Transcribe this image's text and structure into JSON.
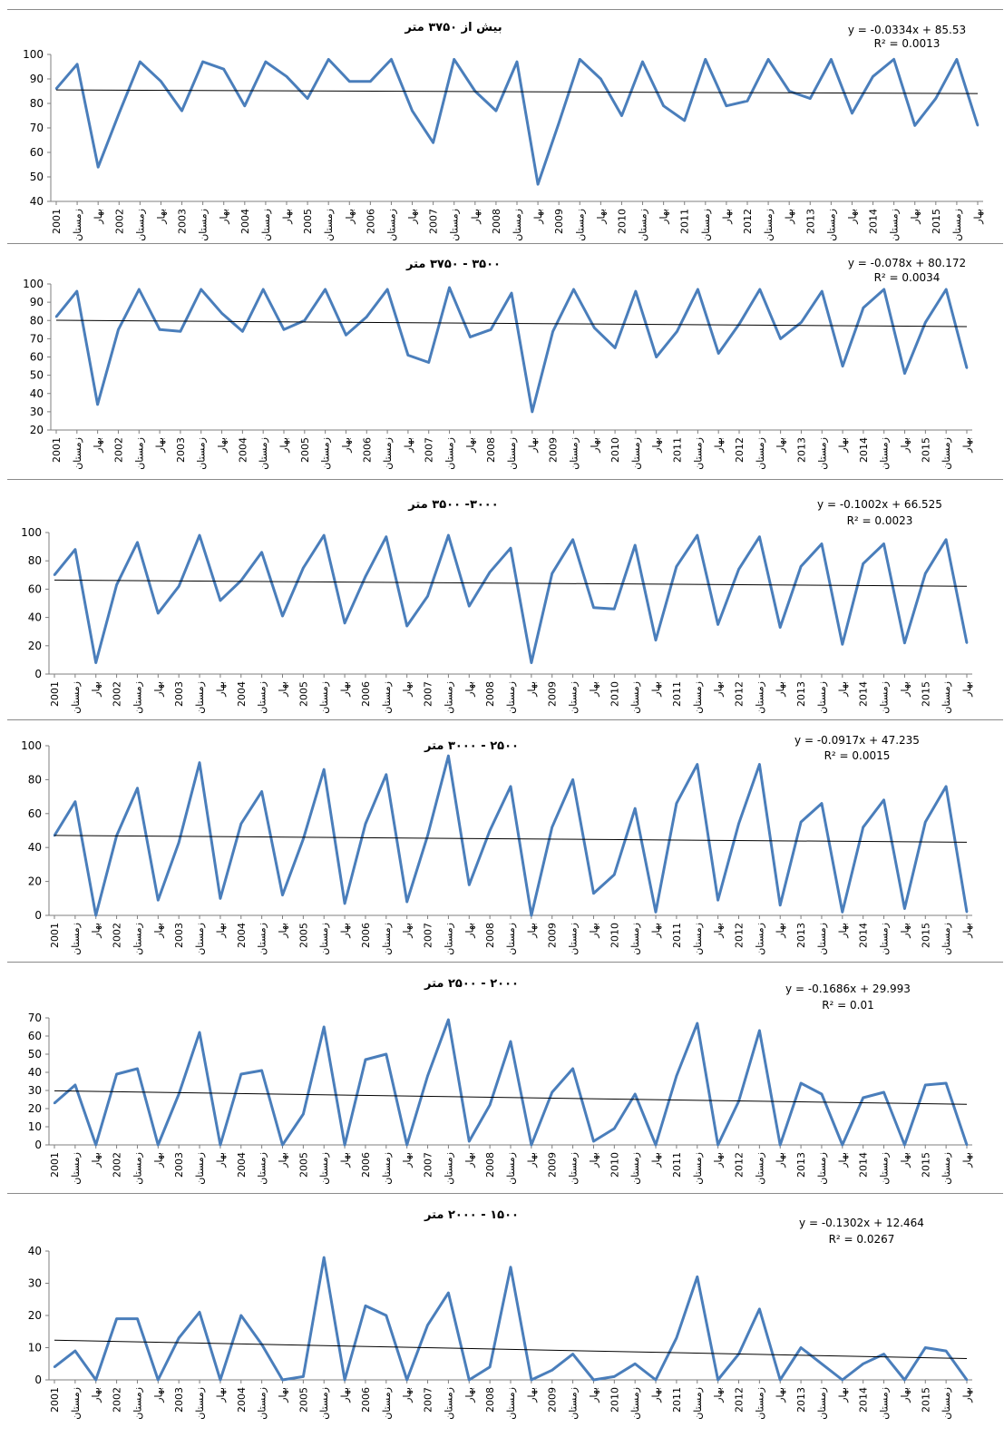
{
  "colors": {
    "series": "#4a7ebb",
    "trend": "#000000",
    "axis": "#7f7f7f",
    "panel_border": "#8a8a8a"
  },
  "chart_data": [
    {
      "type": "line",
      "title": "بیش از ۳۷۵۰ متر",
      "equation": "y = -0.0334x + 85.53",
      "r2": "R² = 0.0013",
      "ylim": [
        40,
        100
      ],
      "yticks": [
        "40",
        "50",
        "60",
        "70",
        "80",
        "90",
        "100"
      ],
      "x": [
        "2001",
        "زمستان",
        "بهار",
        "2002",
        "زمستان",
        "بهار",
        "2003",
        "زمستان",
        "بهار",
        "2004",
        "زمستان",
        "بهار",
        "2005",
        "زمستان",
        "بهار",
        "2006",
        "زمستان",
        "بهار",
        "2007",
        "زمستان",
        "بهار",
        "2008",
        "زمستان",
        "بهار",
        "2009",
        "زمستان",
        "بهار",
        "2010",
        "زمستان",
        "بهار",
        "2011",
        "زمستان",
        "بهار",
        "2012",
        "زمستان",
        "بهار",
        "2013",
        "زمستان",
        "بهار",
        "2014",
        "زمستان",
        "بهار",
        "2015",
        "زمستان",
        "بهار"
      ],
      "values": [
        86,
        96,
        54,
        76,
        97,
        89,
        77,
        97,
        94,
        79,
        97,
        91,
        82,
        98,
        89,
        89,
        98,
        77,
        64,
        98,
        85,
        77,
        97,
        47,
        72,
        98,
        90,
        75,
        97,
        79,
        73,
        98,
        79,
        81,
        98,
        85,
        82,
        98,
        76,
        91,
        98,
        71,
        82,
        98,
        71
      ],
      "trend": {
        "slope": -0.0334,
        "intercept": 85.53
      }
    },
    {
      "type": "line",
      "title": "۳۵۰۰ - ۳۷۵۰ متر",
      "equation": "y = -0.078x + 80.172",
      "r2": "R² = 0.0034",
      "ylim": [
        20,
        100
      ],
      "yticks": [
        "20",
        "30",
        "40",
        "50",
        "60",
        "70",
        "80",
        "90",
        "100"
      ],
      "x": [
        "2001",
        "زمستان",
        "بهار",
        "2002",
        "زمستان",
        "بهار",
        "2003",
        "زمستان",
        "بهار",
        "2004",
        "زمستان",
        "بهار",
        "2005",
        "زمستان",
        "بهار",
        "2006",
        "زمستان",
        "بهار",
        "2007",
        "زمستان",
        "بهار",
        "2008",
        "زمستان",
        "بهار",
        "2009",
        "زمستان",
        "بهار",
        "2010",
        "زمستان",
        "بهار",
        "2011",
        "زمستان",
        "بهار",
        "2012",
        "زمستان",
        "بهار",
        "2013",
        "زمستان",
        "بهار",
        "2014",
        "زمستان",
        "بهار",
        "2015",
        "زمستان",
        "بهار"
      ],
      "values": [
        82,
        96,
        34,
        75,
        97,
        75,
        74,
        97,
        84,
        74,
        97,
        75,
        80,
        97,
        72,
        82,
        97,
        61,
        57,
        98,
        71,
        75,
        95,
        30,
        74,
        97,
        76,
        65,
        96,
        60,
        74,
        97,
        62,
        78,
        97,
        70,
        79,
        96,
        55,
        87,
        97,
        51,
        79,
        97,
        54
      ],
      "trend": {
        "slope": -0.078,
        "intercept": 80.172
      }
    },
    {
      "type": "line",
      "title": "۳۰۰۰- ۳۵۰۰ متر",
      "equation": "y = -0.1002x + 66.525",
      "r2": "R² = 0.0023",
      "ylim": [
        0,
        100
      ],
      "yticks": [
        "0",
        "20",
        "40",
        "60",
        "80",
        "100"
      ],
      "x": [
        "2001",
        "زمستان",
        "بهار",
        "2002",
        "زمستان",
        "بهار",
        "2003",
        "زمستان",
        "بهار",
        "2004",
        "زمستان",
        "بهار",
        "2005",
        "زمستان",
        "بهار",
        "2006",
        "زمستان",
        "بهار",
        "2007",
        "زمستان",
        "بهار",
        "2008",
        "زمستان",
        "بهار",
        "2009",
        "زمستان",
        "بهار",
        "2010",
        "زمستان",
        "بهار",
        "2011",
        "زمستان",
        "بهار",
        "2012",
        "زمستان",
        "بهار",
        "2013",
        "زمستان",
        "بهار",
        "2014",
        "زمستان",
        "بهار",
        "2015",
        "زمستان",
        "بهار"
      ],
      "values": [
        70,
        88,
        8,
        63,
        93,
        43,
        62,
        98,
        52,
        66,
        86,
        41,
        75,
        98,
        36,
        69,
        97,
        34,
        55,
        98,
        48,
        72,
        89,
        8,
        71,
        95,
        47,
        46,
        91,
        24,
        76,
        98,
        35,
        74,
        97,
        33,
        76,
        92,
        21,
        78,
        92,
        22,
        71,
        95,
        22
      ],
      "trend": {
        "slope": -0.1002,
        "intercept": 66.525
      }
    },
    {
      "type": "line",
      "title": "۲۵۰۰ - ۳۰۰۰ متر",
      "equation": "y = -0.0917x + 47.235",
      "r2": "R² = 0.0015",
      "ylim": [
        0,
        100
      ],
      "yticks": [
        "0",
        "20",
        "40",
        "60",
        "80",
        "100"
      ],
      "x": [
        "2001",
        "زمستان",
        "بهار",
        "2002",
        "زمستان",
        "بهار",
        "2003",
        "زمستان",
        "بهار",
        "2004",
        "زمستان",
        "بهار",
        "2005",
        "زمستان",
        "بهار",
        "2006",
        "زمستان",
        "بهار",
        "2007",
        "زمستان",
        "بهار",
        "2008",
        "زمستان",
        "بهار",
        "2009",
        "زمستان",
        "بهار",
        "2010",
        "زمستان",
        "بهار",
        "2011",
        "زمستان",
        "بهار",
        "2012",
        "زمستان",
        "بهار",
        "2013",
        "زمستان",
        "بهار",
        "2014",
        "زمستان",
        "بهار",
        "2015",
        "زمستان",
        "بهار"
      ],
      "values": [
        47,
        67,
        0,
        47,
        75,
        9,
        43,
        90,
        10,
        54,
        73,
        12,
        45,
        86,
        7,
        54,
        83,
        8,
        47,
        94,
        18,
        50,
        76,
        0,
        52,
        80,
        13,
        24,
        63,
        2,
        66,
        89,
        9,
        54,
        89,
        6,
        55,
        66,
        2,
        52,
        68,
        4,
        55,
        76,
        2
      ],
      "trend": {
        "slope": -0.0917,
        "intercept": 47.235
      }
    },
    {
      "type": "line",
      "title": "۲۰۰۰ - ۲۵۰۰ متر",
      "equation": "y = -0.1686x + 29.993",
      "r2": "R² = 0.01",
      "ylim": [
        0,
        70
      ],
      "yticks": [
        "0",
        "10",
        "20",
        "30",
        "40",
        "50",
        "60",
        "70"
      ],
      "x": [
        "2001",
        "زمستان",
        "بهار",
        "2002",
        "زمستان",
        "بهار",
        "2003",
        "زمستان",
        "بهار",
        "2004",
        "زمستان",
        "بهار",
        "2005",
        "زمستان",
        "بهار",
        "2006",
        "زمستان",
        "بهار",
        "2007",
        "زمستان",
        "بهار",
        "2008",
        "زمستان",
        "بهار",
        "2009",
        "زمستان",
        "بهار",
        "2010",
        "زمستان",
        "بهار",
        "2011",
        "زمستان",
        "بهار",
        "2012",
        "زمستان",
        "بهار",
        "2013",
        "زمستان",
        "بهار",
        "2014",
        "زمستان",
        "بهار",
        "2015",
        "زمستان",
        "بهار"
      ],
      "values": [
        23,
        33,
        0,
        39,
        42,
        0,
        28,
        62,
        0,
        39,
        41,
        0,
        17,
        65,
        0,
        47,
        50,
        0,
        38,
        69,
        2,
        22,
        57,
        0,
        29,
        42,
        2,
        9,
        28,
        0,
        38,
        67,
        0,
        24,
        63,
        0,
        34,
        28,
        0,
        26,
        29,
        0,
        33,
        34,
        0
      ],
      "trend": {
        "slope": -0.1686,
        "intercept": 29.993
      }
    },
    {
      "type": "line",
      "title": "۱۵۰۰ - ۲۰۰۰ متر",
      "equation": "y = -0.1302x + 12.464",
      "r2": "R² = 0.0267",
      "ylim": [
        0,
        40
      ],
      "yticks": [
        "0",
        "10",
        "20",
        "30",
        "40"
      ],
      "x": [
        "2001",
        "زمستان",
        "بهار",
        "2002",
        "زمستان",
        "بهار",
        "2003",
        "زمستان",
        "بهار",
        "2004",
        "زمستان",
        "بهار",
        "2005",
        "زمستان",
        "بهار",
        "2006",
        "زمستان",
        "بهار",
        "2007",
        "زمستان",
        "بهار",
        "2008",
        "زمستان",
        "بهار",
        "2009",
        "زمستان",
        "بهار",
        "2010",
        "زمستان",
        "بهار",
        "2011",
        "زمستان",
        "بهار",
        "2012",
        "زمستان",
        "بهار",
        "2013",
        "زمستان",
        "بهار",
        "2014",
        "زمستان",
        "بهار",
        "2015",
        "زمستان",
        "بهار"
      ],
      "values": [
        4,
        9,
        0,
        19,
        19,
        0,
        13,
        21,
        0,
        20,
        11,
        0,
        1,
        38,
        0,
        23,
        20,
        0,
        17,
        27,
        0,
        4,
        35,
        0,
        3,
        8,
        0,
        1,
        5,
        0,
        13,
        32,
        0,
        8,
        22,
        0,
        10,
        5,
        0,
        5,
        8,
        0,
        10,
        9,
        0
      ],
      "trend": {
        "slope": -0.1302,
        "intercept": 12.464
      }
    }
  ]
}
